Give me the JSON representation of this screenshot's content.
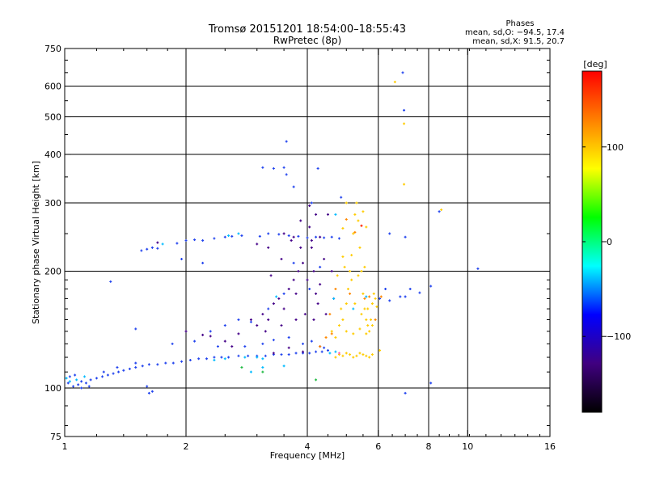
{
  "chart_data": {
    "type": "scatter",
    "title": "Tromsø 20151201 18:54:00–18:55:43",
    "subtitle": "RwPretec (8p)",
    "xlabel": "Frequency [MHz]",
    "ylabel": "Stationary phase Virtual Height [km]",
    "x_scale": "log",
    "y_scale": "log",
    "xlim": [
      1,
      16
    ],
    "ylim": [
      75,
      750
    ],
    "x_ticks": [
      1,
      2,
      4,
      6,
      8,
      10,
      16
    ],
    "x_tick_labels": [
      "1",
      "2",
      "4",
      "6",
      "8",
      "10",
      "16"
    ],
    "y_ticks": [
      75,
      100,
      200,
      300,
      400,
      500,
      600,
      750
    ],
    "y_tick_labels": [
      "75",
      "100",
      "200",
      "300",
      "400",
      "500",
      "600",
      "750"
    ],
    "grid": true,
    "legend": {
      "title": "Phases",
      "lines": [
        "mean, sd,O: −94.5, 17.4",
        "mean, sd,X:  91.5, 20.7"
      ],
      "placement": "top-right"
    },
    "colorbar": {
      "label": "[deg]",
      "range": [
        -180,
        180
      ],
      "tick_values": [
        100,
        0,
        -100
      ],
      "tick_labels": [
        "100",
        "0",
        "−100"
      ],
      "colors": [
        "#000000",
        "#400080",
        "#0000ff",
        "#00ffff",
        "#00ff00",
        "#ffff00",
        "#ff8000",
        "#ff0000"
      ]
    },
    "series": [
      {
        "color": "#2244ee",
        "points": [
          [
            1.02,
            103
          ],
          [
            1.05,
            101
          ],
          [
            1.08,
            102
          ],
          [
            1.1,
            104
          ],
          [
            1.13,
            103
          ],
          [
            1.16,
            105
          ],
          [
            1.2,
            106
          ],
          [
            1.24,
            107
          ],
          [
            1.28,
            108
          ],
          [
            1.32,
            109
          ],
          [
            1.36,
            110
          ],
          [
            1.4,
            111
          ],
          [
            1.45,
            112
          ],
          [
            1.5,
            113
          ],
          [
            1.56,
            114
          ],
          [
            1.62,
            115
          ],
          [
            1.7,
            115
          ],
          [
            1.78,
            116
          ],
          [
            1.86,
            116
          ],
          [
            1.95,
            117
          ],
          [
            2.05,
            118
          ],
          [
            2.15,
            119
          ],
          [
            2.25,
            119
          ],
          [
            2.35,
            120
          ],
          [
            2.45,
            120
          ],
          [
            2.55,
            120
          ],
          [
            2.7,
            121
          ],
          [
            2.85,
            121
          ],
          [
            3.0,
            121
          ],
          [
            3.15,
            121
          ],
          [
            3.3,
            122
          ],
          [
            3.45,
            122
          ],
          [
            3.6,
            122
          ],
          [
            3.75,
            123
          ],
          [
            3.9,
            123
          ],
          [
            4.05,
            123
          ],
          [
            4.2,
            124
          ],
          [
            4.35,
            124
          ],
          [
            4.5,
            125
          ],
          [
            1.03,
            107
          ],
          [
            1.06,
            108
          ],
          [
            1.1,
            100
          ],
          [
            1.15,
            101
          ],
          [
            1.25,
            110
          ],
          [
            1.35,
            113
          ],
          [
            1.5,
            116
          ],
          [
            1.6,
            101
          ],
          [
            1.62,
            97
          ],
          [
            1.65,
            98
          ],
          [
            1.55,
            226
          ],
          [
            1.6,
            228
          ],
          [
            1.65,
            230
          ],
          [
            1.7,
            229
          ],
          [
            1.9,
            236
          ],
          [
            2.0,
            240
          ],
          [
            2.1,
            241
          ],
          [
            2.2,
            240
          ],
          [
            2.35,
            243
          ],
          [
            2.5,
            245
          ],
          [
            2.6,
            246
          ],
          [
            2.75,
            247
          ],
          [
            3.05,
            246
          ],
          [
            3.2,
            250
          ],
          [
            3.4,
            249
          ],
          [
            3.6,
            247
          ],
          [
            3.8,
            246
          ],
          [
            4.0,
            244
          ],
          [
            4.2,
            245
          ],
          [
            4.4,
            244
          ],
          [
            4.6,
            245
          ],
          [
            4.8,
            243
          ],
          [
            3.1,
            370
          ],
          [
            3.3,
            368
          ],
          [
            3.5,
            370
          ],
          [
            3.55,
            432
          ],
          [
            4.25,
            368
          ],
          [
            4.85,
            310
          ],
          [
            2.3,
            140
          ],
          [
            2.5,
            145
          ],
          [
            2.7,
            150
          ],
          [
            2.9,
            148
          ],
          [
            3.2,
            160
          ],
          [
            3.5,
            175
          ],
          [
            3.7,
            210
          ],
          [
            4.05,
            180
          ],
          [
            4.3,
            205
          ],
          [
            1.85,
            130
          ],
          [
            2.1,
            132
          ],
          [
            2.4,
            128
          ],
          [
            2.8,
            128
          ],
          [
            3.1,
            130
          ],
          [
            3.3,
            133
          ],
          [
            3.6,
            135
          ],
          [
            3.9,
            130
          ],
          [
            4.1,
            132
          ],
          [
            4.4,
            127
          ],
          [
            1.95,
            215
          ],
          [
            2.2,
            210
          ],
          [
            3.55,
            355
          ],
          [
            3.7,
            330
          ],
          [
            4.1,
            300
          ],
          [
            1.3,
            188
          ],
          [
            1.5,
            142
          ],
          [
            6.05,
            170
          ],
          [
            6.4,
            168
          ],
          [
            6.8,
            172
          ],
          [
            7.2,
            180
          ],
          [
            7.6,
            176
          ],
          [
            8.1,
            183
          ],
          [
            6.25,
            180
          ],
          [
            7.0,
            172
          ],
          [
            10.6,
            203
          ],
          [
            8.1,
            103
          ],
          [
            7.0,
            97
          ],
          [
            6.9,
            650
          ],
          [
            6.95,
            520
          ],
          [
            8.5,
            285
          ],
          [
            6.4,
            250
          ],
          [
            7.0,
            245
          ]
        ]
      },
      {
        "color": "#440088",
        "points": [
          [
            2.0,
            140
          ],
          [
            2.2,
            137
          ],
          [
            2.5,
            132
          ],
          [
            2.7,
            138
          ],
          [
            2.9,
            150
          ],
          [
            3.0,
            145
          ],
          [
            3.1,
            155
          ],
          [
            3.2,
            150
          ],
          [
            3.3,
            165
          ],
          [
            3.4,
            170
          ],
          [
            3.5,
            160
          ],
          [
            3.6,
            180
          ],
          [
            3.7,
            190
          ],
          [
            3.75,
            175
          ],
          [
            3.8,
            200
          ],
          [
            3.85,
            230
          ],
          [
            3.9,
            210
          ],
          [
            3.95,
            155
          ],
          [
            4.0,
            190
          ],
          [
            4.05,
            260
          ],
          [
            4.1,
            230
          ],
          [
            4.15,
            200
          ],
          [
            4.2,
            175
          ],
          [
            4.25,
            165
          ],
          [
            4.3,
            185
          ],
          [
            4.4,
            215
          ],
          [
            4.5,
            280
          ],
          [
            4.6,
            200
          ],
          [
            3.25,
            195
          ],
          [
            3.45,
            215
          ],
          [
            3.65,
            240
          ],
          [
            3.85,
            270
          ],
          [
            4.05,
            295
          ],
          [
            4.2,
            280
          ],
          [
            3.3,
            123
          ],
          [
            3.6,
            127
          ],
          [
            3.9,
            124
          ],
          [
            4.3,
            128
          ],
          [
            2.6,
            128
          ],
          [
            2.3,
            136
          ],
          [
            3.15,
            140
          ],
          [
            3.45,
            145
          ],
          [
            3.75,
            150
          ],
          [
            4.15,
            150
          ],
          [
            4.45,
            155
          ],
          [
            4.65,
            170
          ],
          [
            3.0,
            235
          ],
          [
            3.2,
            230
          ],
          [
            3.5,
            250
          ],
          [
            3.7,
            245
          ],
          [
            4.1,
            240
          ],
          [
            4.3,
            245
          ],
          [
            1.7,
            237
          ]
        ]
      },
      {
        "color": "#00bbff",
        "points": [
          [
            1.01,
            106
          ],
          [
            1.03,
            104
          ],
          [
            1.07,
            105
          ],
          [
            1.12,
            107
          ],
          [
            2.35,
            118
          ],
          [
            2.5,
            119
          ],
          [
            2.8,
            120
          ],
          [
            3.0,
            120
          ],
          [
            3.1,
            119
          ],
          [
            4.55,
            123
          ],
          [
            4.7,
            124
          ],
          [
            2.55,
            247
          ],
          [
            2.7,
            250
          ],
          [
            1.75,
            235
          ],
          [
            3.1,
            113
          ],
          [
            3.5,
            114
          ],
          [
            4.65,
            170
          ],
          [
            5.2,
            160
          ],
          [
            5.6,
            172
          ],
          [
            4.7,
            280
          ],
          [
            2.9,
            110
          ],
          [
            3.35,
            172
          ]
        ]
      },
      {
        "color": "#ffcc00",
        "points": [
          [
            4.7,
            120
          ],
          [
            4.8,
            122
          ],
          [
            4.9,
            121
          ],
          [
            5.0,
            123
          ],
          [
            5.1,
            122
          ],
          [
            5.2,
            120
          ],
          [
            5.3,
            121
          ],
          [
            5.4,
            123
          ],
          [
            5.5,
            122
          ],
          [
            5.6,
            121
          ],
          [
            5.7,
            120
          ],
          [
            5.8,
            122
          ],
          [
            4.6,
            140
          ],
          [
            4.7,
            135
          ],
          [
            4.8,
            145
          ],
          [
            4.9,
            150
          ],
          [
            5.0,
            165
          ],
          [
            5.05,
            180
          ],
          [
            5.1,
            200
          ],
          [
            5.15,
            220
          ],
          [
            5.2,
            250
          ],
          [
            5.25,
            280
          ],
          [
            5.3,
            300
          ],
          [
            5.35,
            270
          ],
          [
            5.4,
            230
          ],
          [
            5.45,
            200
          ],
          [
            5.5,
            175
          ],
          [
            5.55,
            160
          ],
          [
            5.6,
            150
          ],
          [
            5.65,
            145
          ],
          [
            5.7,
            140
          ],
          [
            5.75,
            150
          ],
          [
            5.8,
            165
          ],
          [
            5.85,
            175
          ],
          [
            5.9,
            170
          ],
          [
            5.95,
            162
          ],
          [
            5.0,
            140
          ],
          [
            5.2,
            138
          ],
          [
            5.4,
            142
          ],
          [
            5.6,
            138
          ],
          [
            5.8,
            145
          ],
          [
            4.75,
            195
          ],
          [
            4.95,
            205
          ],
          [
            5.15,
            190
          ],
          [
            5.35,
            195
          ],
          [
            5.55,
            205
          ],
          [
            4.85,
            160
          ],
          [
            5.25,
            165
          ],
          [
            5.45,
            155
          ],
          [
            5.65,
            160
          ],
          [
            6.6,
            615
          ],
          [
            6.95,
            480
          ],
          [
            6.95,
            335
          ],
          [
            8.6,
            288
          ],
          [
            5.0,
            300
          ],
          [
            4.9,
            258
          ],
          [
            5.5,
            285
          ],
          [
            6.05,
            125
          ],
          [
            4.9,
            218
          ],
          [
            5.6,
            260
          ]
        ]
      },
      {
        "color": "#ff8800",
        "points": [
          [
            4.45,
            135
          ],
          [
            4.6,
            138
          ],
          [
            5.25,
            252
          ],
          [
            5.1,
            175
          ],
          [
            5.7,
            172
          ],
          [
            6.1,
            172
          ],
          [
            4.7,
            180
          ],
          [
            5.0,
            272
          ],
          [
            5.55,
            170
          ],
          [
            5.9,
            150
          ],
          [
            4.3,
            128
          ],
          [
            4.55,
            155
          ]
        ]
      },
      {
        "color": "#ff2200",
        "points": [
          [
            5.45,
            262
          ]
        ]
      },
      {
        "color": "#22bb44",
        "points": [
          [
            3.1,
            110
          ],
          [
            2.75,
            113
          ],
          [
            4.2,
            105
          ]
        ]
      },
      {
        "color": "#ff66aa",
        "points": [
          [
            4.8,
            123
          ]
        ]
      }
    ]
  }
}
